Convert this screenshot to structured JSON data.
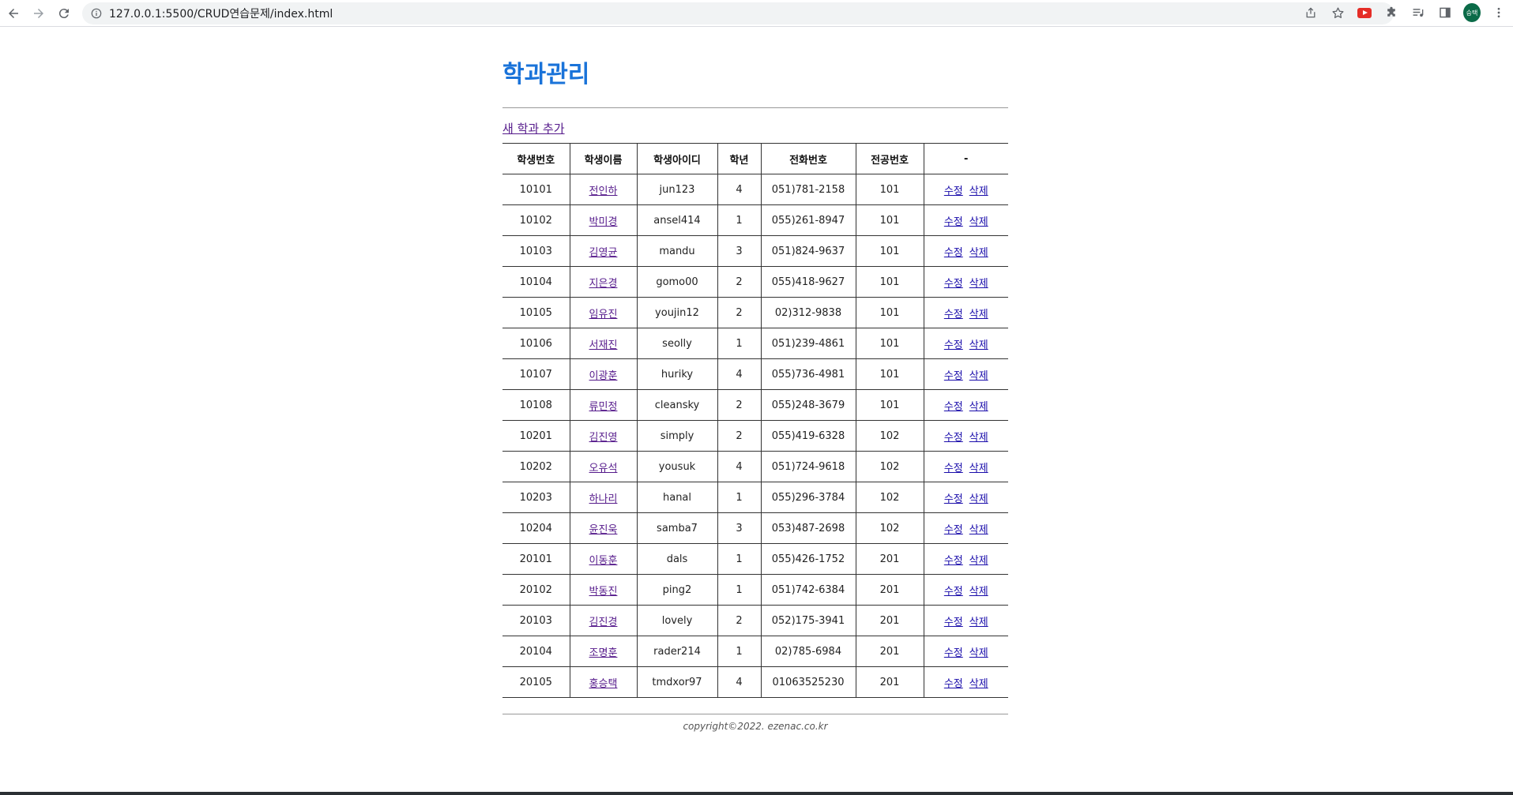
{
  "browser": {
    "url": "127.0.0.1:5500/CRUD연습문제/index.html",
    "avatar_text": "승택"
  },
  "page": {
    "title": "학과관리",
    "add_link": "새 학과 추가",
    "footer": "copyright©2022. ezenac.co.kr"
  },
  "table": {
    "headers": [
      "학생번호",
      "학생이름",
      "학생아이디",
      "학년",
      "전화번호",
      "전공번호",
      "-"
    ],
    "edit_label": "수정",
    "delete_label": "삭제",
    "rows": [
      [
        "10101",
        "전인하",
        "jun123",
        "4",
        "051)781-2158",
        "101"
      ],
      [
        "10102",
        "박미경",
        "ansel414",
        "1",
        "055)261-8947",
        "101"
      ],
      [
        "10103",
        "김영균",
        "mandu",
        "3",
        "051)824-9637",
        "101"
      ],
      [
        "10104",
        "지은경",
        "gomo00",
        "2",
        "055)418-9627",
        "101"
      ],
      [
        "10105",
        "임유진",
        "youjin12",
        "2",
        "02)312-9838",
        "101"
      ],
      [
        "10106",
        "서재진",
        "seolly",
        "1",
        "051)239-4861",
        "101"
      ],
      [
        "10107",
        "이광훈",
        "huriky",
        "4",
        "055)736-4981",
        "101"
      ],
      [
        "10108",
        "류민정",
        "cleansky",
        "2",
        "055)248-3679",
        "101"
      ],
      [
        "10201",
        "김진영",
        "simply",
        "2",
        "055)419-6328",
        "102"
      ],
      [
        "10202",
        "오유석",
        "yousuk",
        "4",
        "051)724-9618",
        "102"
      ],
      [
        "10203",
        "하나리",
        "hanal",
        "1",
        "055)296-3784",
        "102"
      ],
      [
        "10204",
        "윤진욱",
        "samba7",
        "3",
        "053)487-2698",
        "102"
      ],
      [
        "20101",
        "이동훈",
        "dals",
        "1",
        "055)426-1752",
        "201"
      ],
      [
        "20102",
        "박동진",
        "ping2",
        "1",
        "051)742-6384",
        "201"
      ],
      [
        "20103",
        "김진경",
        "lovely",
        "2",
        "052)175-3941",
        "201"
      ],
      [
        "20104",
        "조명훈",
        "rader214",
        "1",
        "02)785-6984",
        "201"
      ],
      [
        "20105",
        "홍승택",
        "tmdxor97",
        "4",
        "01063525230",
        "201"
      ]
    ]
  },
  "icons": {
    "back": "back-arrow-icon",
    "forward": "forward-arrow-icon",
    "reload": "reload-icon",
    "info": "info-icon",
    "share": "share-icon",
    "bookmark": "star-icon",
    "youtube": "youtube-extension-icon",
    "extensions": "puzzle-icon",
    "media": "media-list-icon",
    "sidepanel": "side-panel-icon",
    "menu": "kebab-menu-icon"
  }
}
